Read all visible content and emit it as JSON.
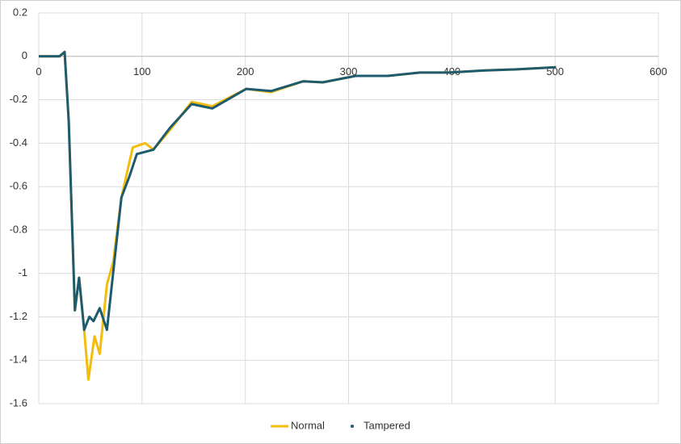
{
  "chart_data": {
    "type": "line",
    "xlim": [
      0,
      600
    ],
    "xticks": [
      0,
      100,
      200,
      300,
      400,
      500,
      600
    ],
    "ylim": [
      -1.6,
      0.2
    ],
    "yticks": [
      0.2,
      0,
      -0.2,
      -0.4,
      -0.6,
      -0.8,
      -1,
      -1.2,
      -1.4,
      -1.6
    ],
    "grid": true,
    "legend": "bottom",
    "series": [
      {
        "name": "Normal",
        "color": "#f2bd0c",
        "x": [
          0,
          20,
          25,
          29,
          35,
          39,
          44,
          48,
          54,
          59,
          66,
          72,
          80,
          91,
          103,
          111,
          127,
          148,
          168,
          201,
          225,
          256,
          275,
          307,
          338,
          369,
          397,
          432,
          463,
          501
        ],
        "values": [
          0,
          0,
          0.02,
          -0.3,
          -1.17,
          -1.02,
          -1.26,
          -1.49,
          -1.29,
          -1.37,
          -1.05,
          -0.95,
          -0.65,
          -0.42,
          -0.4,
          -0.43,
          -0.34,
          -0.21,
          -0.23,
          -0.15,
          -0.165,
          -0.115,
          -0.12,
          -0.09,
          -0.09,
          -0.075,
          -0.075,
          -0.065,
          -0.06,
          -0.05
        ]
      },
      {
        "name": "Tampered",
        "color": "#1e5b6e",
        "x": [
          0,
          20,
          25,
          29,
          35,
          39,
          44,
          49,
          53,
          59,
          66,
          72,
          80,
          88,
          95,
          111,
          127,
          148,
          168,
          201,
          225,
          256,
          275,
          307,
          338,
          369,
          397,
          432,
          463,
          501
        ],
        "values": [
          0,
          0,
          0.02,
          -0.3,
          -1.17,
          -1.02,
          -1.26,
          -1.2,
          -1.22,
          -1.16,
          -1.26,
          -1.0,
          -0.65,
          -0.55,
          -0.45,
          -0.43,
          -0.33,
          -0.22,
          -0.24,
          -0.15,
          -0.16,
          -0.115,
          -0.12,
          -0.09,
          -0.09,
          -0.075,
          -0.075,
          -0.065,
          -0.06,
          -0.05
        ]
      }
    ]
  }
}
